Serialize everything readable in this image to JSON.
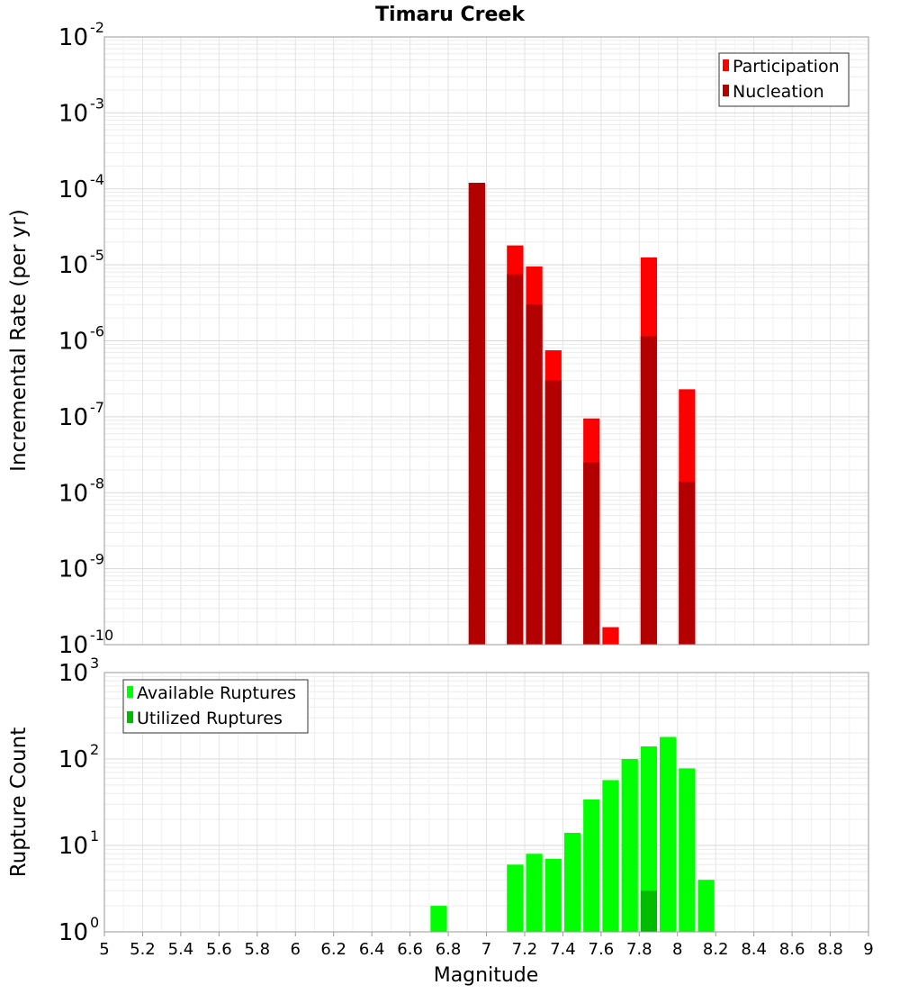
{
  "title": "Timaru Creek",
  "chart_data": [
    {
      "type": "bar",
      "name": "rate-panel",
      "ylabel": "Incremental Rate (per yr)",
      "xlabel": "Magnitude",
      "yscale": "log",
      "ylim_exponents": [
        -10,
        -2
      ],
      "xlim": [
        5,
        9
      ],
      "bin_width": 0.1,
      "legend_position": "top-right",
      "series": [
        {
          "name": "Participation",
          "color": "#ff0000",
          "points": [
            {
              "x": 6.95,
              "y": 0.00012
            },
            {
              "x": 7.15,
              "y": 1.8e-05
            },
            {
              "x": 7.25,
              "y": 9.5e-06
            },
            {
              "x": 7.35,
              "y": 7.5e-07
            },
            {
              "x": 7.55,
              "y": 9.5e-08
            },
            {
              "x": 7.65,
              "y": 1.7e-10
            },
            {
              "x": 7.85,
              "y": 1.25e-05
            },
            {
              "x": 8.05,
              "y": 2.3e-07
            }
          ]
        },
        {
          "name": "Nucleation",
          "color": "#b30000",
          "points": [
            {
              "x": 6.95,
              "y": 0.00012
            },
            {
              "x": 7.15,
              "y": 7.5e-06
            },
            {
              "x": 7.25,
              "y": 3e-06
            },
            {
              "x": 7.35,
              "y": 3e-07
            },
            {
              "x": 7.55,
              "y": 2.5e-08
            },
            {
              "x": 7.85,
              "y": 1.15e-06
            },
            {
              "x": 8.05,
              "y": 1.4e-08
            }
          ]
        }
      ]
    },
    {
      "type": "bar",
      "name": "count-panel",
      "ylabel": "Rupture Count",
      "xlabel": "Magnitude",
      "yscale": "log",
      "ylim_exponents": [
        0,
        3
      ],
      "xlim": [
        5,
        9
      ],
      "bin_width": 0.1,
      "legend_position": "top-left",
      "series": [
        {
          "name": "Available Ruptures",
          "color": "#00ff00",
          "points": [
            {
              "x": 6.75,
              "y": 2
            },
            {
              "x": 6.95,
              "y": 1
            },
            {
              "x": 7.05,
              "y": 1
            },
            {
              "x": 7.15,
              "y": 6
            },
            {
              "x": 7.25,
              "y": 8
            },
            {
              "x": 7.35,
              "y": 7
            },
            {
              "x": 7.45,
              "y": 14
            },
            {
              "x": 7.55,
              "y": 34
            },
            {
              "x": 7.65,
              "y": 57
            },
            {
              "x": 7.75,
              "y": 100
            },
            {
              "x": 7.85,
              "y": 140
            },
            {
              "x": 7.95,
              "y": 180
            },
            {
              "x": 8.05,
              "y": 78
            },
            {
              "x": 8.15,
              "y": 4
            }
          ]
        },
        {
          "name": "Utilized Ruptures",
          "color": "#00bb00",
          "points": [
            {
              "x": 6.95,
              "y": 1
            },
            {
              "x": 7.15,
              "y": 1
            },
            {
              "x": 7.25,
              "y": 1
            },
            {
              "x": 7.35,
              "y": 1
            },
            {
              "x": 7.55,
              "y": 1
            },
            {
              "x": 7.65,
              "y": 1
            },
            {
              "x": 7.85,
              "y": 3
            },
            {
              "x": 8.05,
              "y": 1
            }
          ]
        }
      ]
    }
  ],
  "x_ticks": [
    "5",
    "5.2",
    "5.4",
    "5.6",
    "5.8",
    "6",
    "6.2",
    "6.4",
    "6.6",
    "6.8",
    "7",
    "7.2",
    "7.4",
    "7.6",
    "7.8",
    "8",
    "8.2",
    "8.4",
    "8.6",
    "8.8",
    "9"
  ]
}
